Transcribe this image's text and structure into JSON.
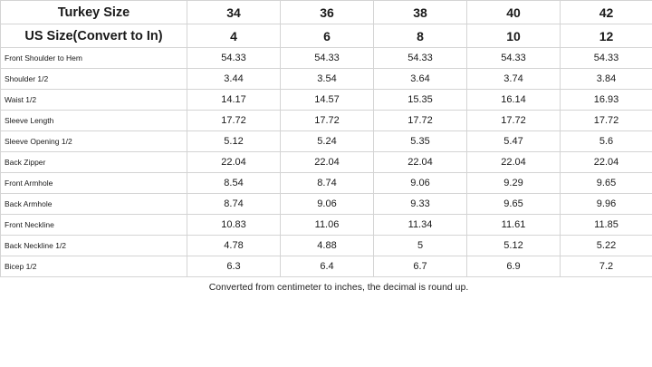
{
  "table": {
    "header_rows": [
      {
        "label": "Turkey Size",
        "values": [
          "34",
          "36",
          "38",
          "40",
          "42"
        ]
      },
      {
        "label": "US Size(Convert to In)",
        "values": [
          "4",
          "6",
          "8",
          "10",
          "12"
        ]
      }
    ],
    "rows": [
      {
        "label": "Front Shoulder to Hem",
        "values": [
          "54.33",
          "54.33",
          "54.33",
          "54.33",
          "54.33"
        ]
      },
      {
        "label": "Shoulder 1/2",
        "values": [
          "3.44",
          "3.54",
          "3.64",
          "3.74",
          "3.84"
        ]
      },
      {
        "label": "Waist 1/2",
        "values": [
          "14.17",
          "14.57",
          "15.35",
          "16.14",
          "16.93"
        ]
      },
      {
        "label": "Sleeve Length",
        "values": [
          "17.72",
          "17.72",
          "17.72",
          "17.72",
          "17.72"
        ]
      },
      {
        "label": "Sleeve Opening 1/2",
        "values": [
          "5.12",
          "5.24",
          "5.35",
          "5.47",
          "5.6"
        ]
      },
      {
        "label": "Back Zipper",
        "values": [
          "22.04",
          "22.04",
          "22.04",
          "22.04",
          "22.04"
        ]
      },
      {
        "label": "Front Armhole",
        "values": [
          "8.54",
          "8.74",
          "9.06",
          "9.29",
          "9.65"
        ]
      },
      {
        "label": "Back Armhole",
        "values": [
          "8.74",
          "9.06",
          "9.33",
          "9.65",
          "9.96"
        ]
      },
      {
        "label": "Front Neckline",
        "values": [
          "10.83",
          "11.06",
          "11.34",
          "11.61",
          "11.85"
        ]
      },
      {
        "label": "Back Neckline 1/2",
        "values": [
          "4.78",
          "4.88",
          "5",
          "5.12",
          "5.22"
        ]
      },
      {
        "label": "Bicep 1/2",
        "values": [
          "6.3",
          "6.4",
          "6.7",
          "6.9",
          "7.2"
        ]
      }
    ]
  },
  "note": "Converted from centimeter to inches, the decimal is round up."
}
